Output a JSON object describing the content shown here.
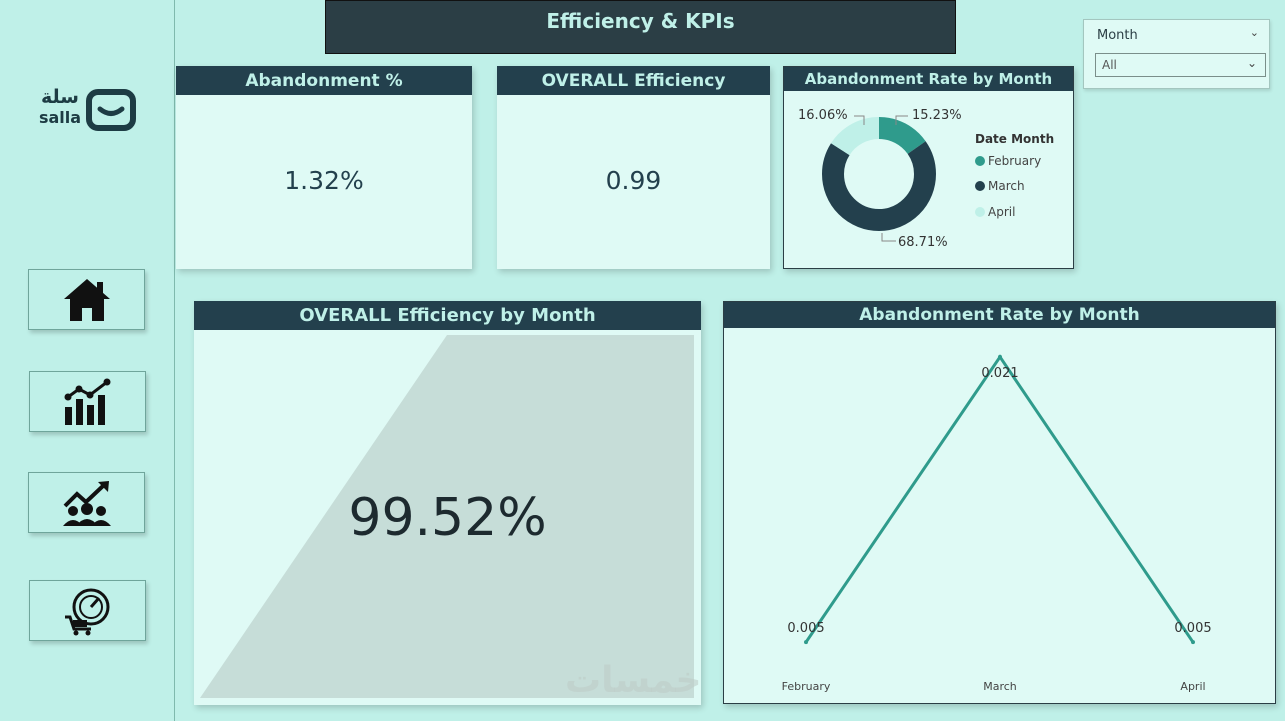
{
  "app": {
    "title": "Efficiency & KPIs",
    "logo": {
      "arabic": "سلة",
      "latin": "salla"
    }
  },
  "nav": [
    {
      "name": "home",
      "icon": "home-icon"
    },
    {
      "name": "analytics",
      "icon": "bar-chart-icon"
    },
    {
      "name": "customers",
      "icon": "people-growth-icon"
    },
    {
      "name": "performance",
      "icon": "cart-speedometer-icon"
    }
  ],
  "slicer": {
    "label": "Month",
    "value": "All"
  },
  "kpis": {
    "abandonment": {
      "title": "Abandonment %",
      "value": "1.32%"
    },
    "efficiency": {
      "title": "OVERALL Efficiency",
      "value": "0.99"
    }
  },
  "donut": {
    "title": "Abandonment Rate by Month",
    "legend_title": "Date Month",
    "slices": [
      {
        "label": "February",
        "pct": 15.23,
        "pct_label": "15.23%",
        "color": "#2f9b8c"
      },
      {
        "label": "March",
        "pct": 68.71,
        "pct_label": "68.71%",
        "color": "#23404d"
      },
      {
        "label": "April",
        "pct": 16.06,
        "pct_label": "16.06%",
        "color": "#bff0e8"
      }
    ]
  },
  "funnel": {
    "title": "OVERALL Efficiency by Month",
    "value": "99.52%"
  },
  "line": {
    "title": "Abandonment Rate by Month"
  },
  "chart_data": {
    "type": "line",
    "title": "Abandonment Rate by Month",
    "categories": [
      "February",
      "March",
      "April"
    ],
    "values": [
      0.005,
      0.021,
      0.005
    ],
    "value_labels": [
      "0.005",
      "0.021",
      "0.005"
    ],
    "ylim": [
      0.004,
      0.0215
    ],
    "xlabel": "",
    "ylabel": "",
    "line_color": "#2f9b8c"
  },
  "watermark": "خمسات"
}
